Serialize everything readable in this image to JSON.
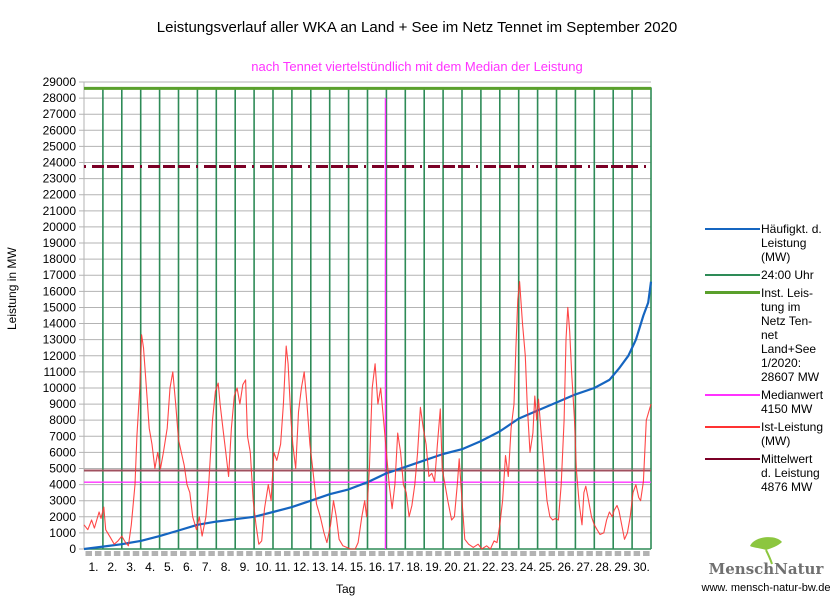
{
  "chart_data": {
    "type": "line",
    "title": "Leistungsverlauf aller WKA an Land + See im Netz Tennet im September 2020",
    "subtitle": "nach Tennet viertelstündlich mit dem Median der Leistung",
    "xlabel": "Tag",
    "ylabel": "Leistung in MW",
    "xlim": [
      0,
      30
    ],
    "ylim": [
      0,
      29000
    ],
    "ytick_step": 1000,
    "yticks": [
      "0",
      "1000",
      "2000",
      "3000",
      "4000",
      "5000",
      "6000",
      "7000",
      "8000",
      "9000",
      "10000",
      "11000",
      "12000",
      "13000",
      "14000",
      "15000",
      "16000",
      "17000",
      "18000",
      "19000",
      "20000",
      "21000",
      "22000",
      "23000",
      "24000",
      "25000",
      "26000",
      "27000",
      "28000",
      "29000"
    ],
    "xticks": [
      "1.",
      "2.",
      "3.",
      "4.",
      "5.",
      "6.",
      "7.",
      "8.",
      "9.",
      "10.",
      "11.",
      "12.",
      "13.",
      "14.",
      "15.",
      "16.",
      "17.",
      "18.",
      "19.",
      "20.",
      "21.",
      "22.",
      "23.",
      "24.",
      "25.",
      "26.",
      "27.",
      "28.",
      "29.",
      "30."
    ],
    "grid": true,
    "legend_position": "right",
    "series": [
      {
        "name": "Häufigkt. d. Leistung (MW)",
        "color": "#1565c0",
        "kind": "duration-curve",
        "points": [
          [
            0,
            0
          ],
          [
            1,
            150
          ],
          [
            2,
            300
          ],
          [
            3,
            500
          ],
          [
            4,
            800
          ],
          [
            5,
            1150
          ],
          [
            6,
            1500
          ],
          [
            7,
            1700
          ],
          [
            8,
            1850
          ],
          [
            9,
            2000
          ],
          [
            10,
            2300
          ],
          [
            11,
            2600
          ],
          [
            12,
            3000
          ],
          [
            13,
            3400
          ],
          [
            14,
            3700
          ],
          [
            15,
            4150
          ],
          [
            16,
            4700
          ],
          [
            17,
            5100
          ],
          [
            18,
            5500
          ],
          [
            19,
            5900
          ],
          [
            20,
            6200
          ],
          [
            21,
            6700
          ],
          [
            22,
            7300
          ],
          [
            23,
            8100
          ],
          [
            24,
            8600
          ],
          [
            25,
            9100
          ],
          [
            26,
            9600
          ],
          [
            27,
            10000
          ],
          [
            27.8,
            10500
          ],
          [
            28.3,
            11200
          ],
          [
            28.8,
            12000
          ],
          [
            29.2,
            13000
          ],
          [
            29.6,
            14500
          ],
          [
            29.85,
            15300
          ],
          [
            30,
            16600
          ]
        ]
      },
      {
        "name": "24:00 Uhr",
        "color": "#2e8b57",
        "kind": "day-separators",
        "days": [
          1,
          2,
          3,
          4,
          5,
          6,
          7,
          8,
          9,
          10,
          11,
          12,
          13,
          14,
          15,
          16,
          17,
          18,
          19,
          20,
          21,
          22,
          23,
          24,
          25,
          26,
          27,
          28,
          29,
          30
        ],
        "top_value": 28607
      },
      {
        "name": "Inst. Leis-tung im Netz Ten-net Land+See 1/2020: 28607 MW",
        "color": "#5aa02c",
        "kind": "hline",
        "value": 28607
      },
      {
        "name": "Medianwert 4150 MW",
        "color": "#ff33ff",
        "kind": "hline",
        "value": 4150,
        "marker_vline": {
          "x": 15.95,
          "top_value": 28000
        }
      },
      {
        "name": "Ist-Leistung (MW)",
        "color": "#ff3333",
        "kind": "line",
        "points": [
          [
            0,
            1500
          ],
          [
            0.2,
            1200
          ],
          [
            0.4,
            1800
          ],
          [
            0.55,
            1300
          ],
          [
            0.8,
            2300
          ],
          [
            0.9,
            1900
          ],
          [
            1.05,
            2600
          ],
          [
            1.15,
            1200
          ],
          [
            1.4,
            700
          ],
          [
            1.6,
            300
          ],
          [
            1.8,
            500
          ],
          [
            2.0,
            800
          ],
          [
            2.2,
            400
          ],
          [
            2.35,
            200
          ],
          [
            2.5,
            1500
          ],
          [
            2.7,
            4000
          ],
          [
            2.8,
            7000
          ],
          [
            2.95,
            10000
          ],
          [
            3.05,
            13300
          ],
          [
            3.15,
            12500
          ],
          [
            3.3,
            10000
          ],
          [
            3.45,
            7500
          ],
          [
            3.6,
            6500
          ],
          [
            3.75,
            5000
          ],
          [
            3.9,
            6000
          ],
          [
            4.05,
            5000
          ],
          [
            4.2,
            6000
          ],
          [
            4.4,
            7500
          ],
          [
            4.55,
            10000
          ],
          [
            4.7,
            11000
          ],
          [
            4.85,
            9000
          ],
          [
            5.0,
            6800
          ],
          [
            5.15,
            6000
          ],
          [
            5.3,
            5200
          ],
          [
            5.45,
            4000
          ],
          [
            5.6,
            3500
          ],
          [
            5.75,
            2000
          ],
          [
            5.95,
            1200
          ],
          [
            6.1,
            2000
          ],
          [
            6.25,
            800
          ],
          [
            6.45,
            2000
          ],
          [
            6.6,
            4000
          ],
          [
            6.8,
            8000
          ],
          [
            6.95,
            9800
          ],
          [
            7.1,
            10300
          ],
          [
            7.2,
            9000
          ],
          [
            7.35,
            7500
          ],
          [
            7.5,
            6000
          ],
          [
            7.65,
            4500
          ],
          [
            7.8,
            7500
          ],
          [
            7.95,
            9500
          ],
          [
            8.1,
            10000
          ],
          [
            8.25,
            9000
          ],
          [
            8.4,
            10200
          ],
          [
            8.55,
            10500
          ],
          [
            8.65,
            7000
          ],
          [
            8.8,
            6000
          ],
          [
            8.95,
            3000
          ],
          [
            9.1,
            1500
          ],
          [
            9.25,
            300
          ],
          [
            9.4,
            500
          ],
          [
            9.55,
            2500
          ],
          [
            9.75,
            4000
          ],
          [
            9.9,
            3000
          ],
          [
            10.05,
            6000
          ],
          [
            10.2,
            5500
          ],
          [
            10.4,
            6500
          ],
          [
            10.55,
            9000
          ],
          [
            10.7,
            12600
          ],
          [
            10.8,
            11500
          ],
          [
            10.95,
            8000
          ],
          [
            11.05,
            6500
          ],
          [
            11.2,
            5000
          ],
          [
            11.35,
            8500
          ],
          [
            11.5,
            10000
          ],
          [
            11.65,
            11000
          ],
          [
            11.8,
            9000
          ],
          [
            11.95,
            6500
          ],
          [
            12.1,
            5000
          ],
          [
            12.3,
            2800
          ],
          [
            12.5,
            2000
          ],
          [
            12.7,
            1000
          ],
          [
            12.85,
            400
          ],
          [
            13.05,
            1500
          ],
          [
            13.2,
            3000
          ],
          [
            13.35,
            2000
          ],
          [
            13.5,
            600
          ],
          [
            13.7,
            200
          ],
          [
            13.9,
            100
          ],
          [
            14.1,
            0
          ],
          [
            14.35,
            0
          ],
          [
            14.5,
            400
          ],
          [
            14.7,
            2000
          ],
          [
            14.85,
            3000
          ],
          [
            14.95,
            2000
          ],
          [
            15.1,
            5000
          ],
          [
            15.25,
            10000
          ],
          [
            15.4,
            11500
          ],
          [
            15.55,
            9000
          ],
          [
            15.7,
            10000
          ],
          [
            15.85,
            8000
          ],
          [
            16.0,
            6000
          ],
          [
            16.15,
            4000
          ],
          [
            16.3,
            2500
          ],
          [
            16.45,
            4000
          ],
          [
            16.6,
            7200
          ],
          [
            16.75,
            6000
          ],
          [
            16.9,
            4000
          ],
          [
            17.05,
            3500
          ],
          [
            17.2,
            2000
          ],
          [
            17.35,
            2700
          ],
          [
            17.5,
            4000
          ],
          [
            17.65,
            6000
          ],
          [
            17.8,
            8800
          ],
          [
            17.95,
            7500
          ],
          [
            18.1,
            6500
          ],
          [
            18.25,
            4500
          ],
          [
            18.4,
            4700
          ],
          [
            18.55,
            4200
          ],
          [
            18.7,
            6500
          ],
          [
            18.85,
            8700
          ],
          [
            18.95,
            5000
          ],
          [
            19.1,
            4000
          ],
          [
            19.25,
            3000
          ],
          [
            19.45,
            1800
          ],
          [
            19.6,
            2000
          ],
          [
            19.75,
            4000
          ],
          [
            19.85,
            5600
          ],
          [
            20.0,
            3000
          ],
          [
            20.15,
            600
          ],
          [
            20.35,
            300
          ],
          [
            20.6,
            100
          ],
          [
            20.85,
            300
          ],
          [
            21.05,
            0
          ],
          [
            21.3,
            200
          ],
          [
            21.5,
            0
          ],
          [
            21.7,
            500
          ],
          [
            21.85,
            400
          ],
          [
            22.0,
            1500
          ],
          [
            22.15,
            3000
          ],
          [
            22.3,
            5800
          ],
          [
            22.45,
            4500
          ],
          [
            22.6,
            7500
          ],
          [
            22.75,
            9000
          ],
          [
            22.85,
            12500
          ],
          [
            22.95,
            15500
          ],
          [
            23.05,
            16600
          ],
          [
            23.2,
            14000
          ],
          [
            23.35,
            12000
          ],
          [
            23.45,
            9000
          ],
          [
            23.6,
            6000
          ],
          [
            23.75,
            7200
          ],
          [
            23.85,
            9500
          ],
          [
            23.95,
            8000
          ],
          [
            24.05,
            9300
          ],
          [
            24.2,
            7000
          ],
          [
            24.35,
            5000
          ],
          [
            24.5,
            3000
          ],
          [
            24.65,
            2000
          ],
          [
            24.8,
            1800
          ],
          [
            24.95,
            1900
          ],
          [
            25.1,
            1800
          ],
          [
            25.25,
            4000
          ],
          [
            25.4,
            8000
          ],
          [
            25.5,
            13000
          ],
          [
            25.6,
            15000
          ],
          [
            25.7,
            13500
          ],
          [
            25.8,
            11000
          ],
          [
            25.95,
            8000
          ],
          [
            26.05,
            5000
          ],
          [
            26.2,
            2800
          ],
          [
            26.35,
            1500
          ],
          [
            26.45,
            3500
          ],
          [
            26.55,
            3900
          ],
          [
            26.7,
            3000
          ],
          [
            26.85,
            2000
          ],
          [
            27.0,
            1500
          ],
          [
            27.15,
            1200
          ],
          [
            27.3,
            900
          ],
          [
            27.5,
            1000
          ],
          [
            27.65,
            1800
          ],
          [
            27.8,
            2300
          ],
          [
            27.95,
            2000
          ],
          [
            28.05,
            2400
          ],
          [
            28.2,
            2700
          ],
          [
            28.3,
            2400
          ],
          [
            28.45,
            1500
          ],
          [
            28.6,
            600
          ],
          [
            28.75,
            1000
          ],
          [
            28.9,
            2000
          ],
          [
            29.05,
            3500
          ],
          [
            29.2,
            4000
          ],
          [
            29.35,
            3200
          ],
          [
            29.45,
            3000
          ],
          [
            29.6,
            4200
          ],
          [
            29.75,
            8000
          ],
          [
            30,
            9000
          ]
        ]
      },
      {
        "name": "Mittelwert d. Leistung 4876 MW",
        "color": "#7b0026",
        "kind": "hline",
        "value": 4876,
        "dashed_copy_value": 23750
      }
    ]
  },
  "legend": [
    {
      "text": "Häufigkt. d.\nLeistung\n(MW)",
      "color": "#1565c0",
      "thick": false
    },
    {
      "text": "24:00 Uhr",
      "color": "#2e8b57",
      "thick": false
    },
    {
      "text": "Inst. Leis-\ntung im\nNetz Ten-\nnet\nLand+See\n1/2020:\n28607 MW",
      "color": "#5aa02c",
      "thick": true
    },
    {
      "text": "Medianwert\n4150 MW",
      "color": "#ff33ff",
      "thick": false
    },
    {
      "text": "Ist-Leistung\n(MW)",
      "color": "#ff3333",
      "thick": false
    },
    {
      "text": "Mittelwert\nd. Leistung\n4876 MW",
      "color": "#7b0026",
      "thick": false
    }
  ],
  "logo": {
    "name": "MenschNatur",
    "url": "www. mensch-natur-bw.de"
  }
}
